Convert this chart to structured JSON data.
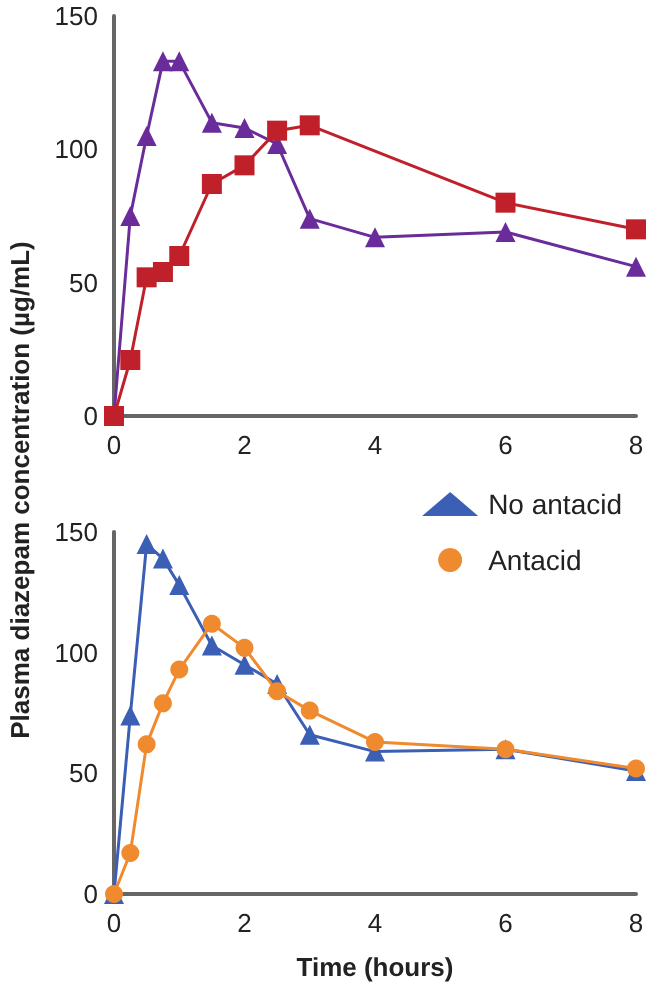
{
  "chart_data": [
    {
      "type": "line",
      "x": [
        0,
        0.25,
        0.5,
        0.75,
        1,
        1.5,
        2,
        2.5,
        3,
        4,
        6,
        8
      ],
      "xlim": [
        0,
        8
      ],
      "xticks": [
        0,
        2,
        4,
        6,
        8
      ],
      "ylim": [
        0,
        150
      ],
      "yticks": [
        0,
        50,
        100,
        150
      ],
      "grid": false,
      "legend": false,
      "series": [
        {
          "color": "#6a2c9a",
          "marker": "triangle",
          "values": [
            0,
            75,
            105,
            133,
            133,
            110,
            108,
            102,
            74,
            67,
            69,
            56
          ]
        },
        {
          "color": "#c0202a",
          "marker": "square",
          "x": [
            0,
            0.25,
            0.5,
            0.75,
            1,
            1.5,
            2,
            2.5,
            3,
            6,
            8
          ],
          "values": [
            0,
            21,
            52,
            54,
            60,
            87,
            94,
            107,
            109,
            80,
            70
          ]
        }
      ]
    },
    {
      "type": "line",
      "x": [
        0,
        0.25,
        0.5,
        0.75,
        1,
        1.5,
        2,
        2.5,
        3,
        4,
        6,
        8
      ],
      "xlim": [
        0,
        8
      ],
      "xticks": [
        0,
        2,
        4,
        6,
        8
      ],
      "ylim": [
        0,
        150
      ],
      "yticks": [
        0,
        50,
        100,
        150
      ],
      "grid": false,
      "legend": "top right",
      "xlabel": "Time (hours)",
      "ylabel": "Plasma diazepam concentration (µg/mL)",
      "series": [
        {
          "name": "No antacid",
          "color": "#3a5fb5",
          "marker": "triangle",
          "values": [
            0,
            74,
            145,
            139,
            128,
            103,
            95,
            87,
            66,
            59,
            60,
            51
          ]
        },
        {
          "name": "Antacid",
          "color": "#f08a2e",
          "marker": "circle",
          "values": [
            0,
            17,
            62,
            79,
            93,
            112,
            102,
            84,
            76,
            63,
            60,
            52
          ]
        }
      ]
    }
  ]
}
